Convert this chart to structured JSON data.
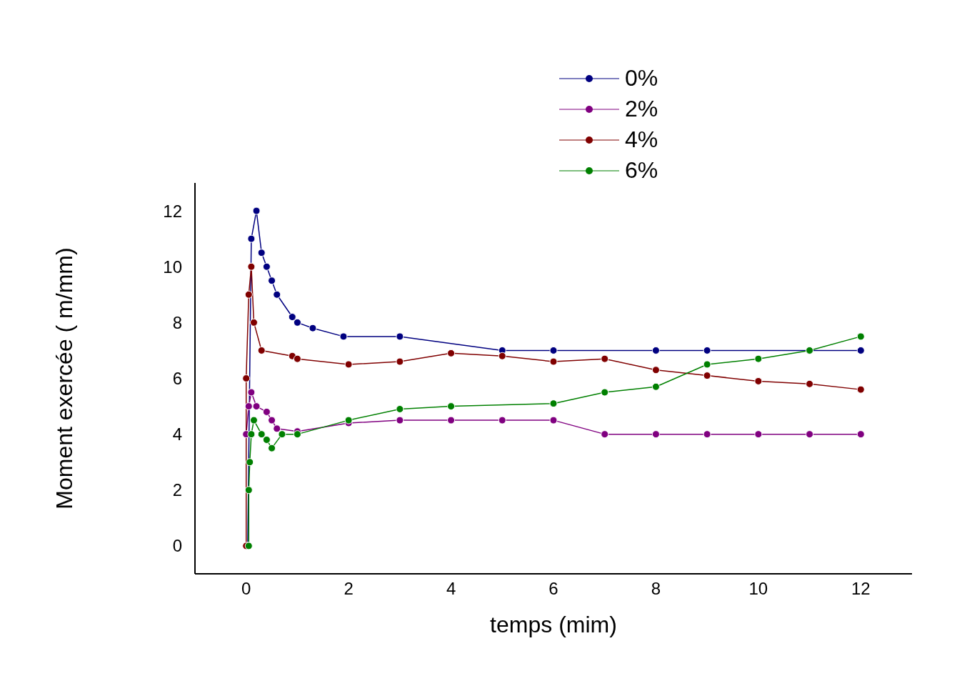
{
  "chart_data": {
    "type": "line",
    "xlabel": "temps (mim)",
    "ylabel": "Moment exercée (  m/mm)",
    "xlim": [
      -1,
      13
    ],
    "ylim": [
      -1,
      13
    ],
    "xticks": [
      0,
      2,
      4,
      6,
      8,
      10,
      12
    ],
    "yticks": [
      0,
      2,
      4,
      6,
      8,
      10,
      12
    ],
    "grid": false,
    "legend": "top",
    "marker": "circle",
    "line_style": "solid",
    "series": [
      {
        "name": "0%",
        "color": "#000080",
        "x": [
          0.03,
          0.1,
          0.2,
          0.3,
          0.4,
          0.5,
          0.6,
          0.9,
          1.0,
          1.3,
          1.9,
          3,
          5,
          6,
          8,
          9,
          11,
          12
        ],
        "values": [
          0,
          11,
          12,
          10.5,
          10,
          9.5,
          9,
          8.2,
          8,
          7.8,
          7.5,
          7.5,
          7,
          7,
          7,
          7,
          7,
          7
        ]
      },
      {
        "name": "2%",
        "color": "#800080",
        "x": [
          0,
          0.05,
          0.1,
          0.2,
          0.4,
          0.5,
          0.6,
          1.0,
          2,
          3,
          4,
          5,
          6,
          7,
          8,
          9,
          10,
          11,
          12
        ],
        "values": [
          4,
          5,
          5.5,
          5,
          4.8,
          4.5,
          4.2,
          4.1,
          4.4,
          4.5,
          4.5,
          4.5,
          4.5,
          4,
          4,
          4,
          4,
          4,
          4
        ]
      },
      {
        "name": "4%",
        "color": "#800000",
        "x": [
          0,
          0,
          0.05,
          0.1,
          0.15,
          0.3,
          0.9,
          1.0,
          2,
          3,
          4,
          5,
          6,
          7,
          8,
          9,
          10,
          11,
          12
        ],
        "values": [
          0,
          6,
          9,
          10,
          8,
          7,
          6.8,
          6.7,
          6.5,
          6.6,
          6.9,
          6.8,
          6.6,
          6.7,
          6.3,
          6.1,
          5.9,
          5.8,
          5.6
        ]
      },
      {
        "name": "6%",
        "color": "#008000",
        "x": [
          0.05,
          0.05,
          0.07,
          0.1,
          0.15,
          0.3,
          0.4,
          0.5,
          0.7,
          1.0,
          2,
          3,
          4,
          6,
          7,
          8,
          9,
          10,
          11,
          12
        ],
        "values": [
          0,
          2,
          3,
          4,
          4.5,
          4,
          3.8,
          3.5,
          4,
          4,
          4.5,
          4.9,
          5,
          5.1,
          5.5,
          5.7,
          6.5,
          6.7,
          7,
          7.5
        ]
      }
    ]
  }
}
